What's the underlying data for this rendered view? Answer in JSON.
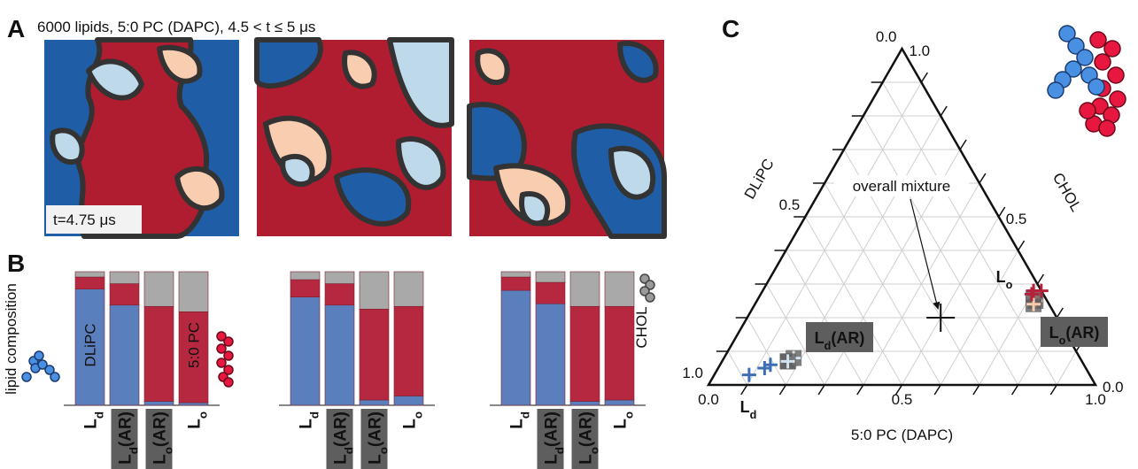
{
  "panels": {
    "letters": [
      "A",
      "B",
      "C"
    ],
    "snapshot_title": "6000 lipids, 5:0 PC (DAPC), 4.5 < t ≤ 5 μs",
    "time_label": "t=4.75 μs"
  },
  "chart_data": [
    {
      "type": "bar",
      "stacked": true,
      "ylabel": "lipid composition",
      "ylim": [
        0,
        1
      ],
      "categories": [
        "Ld",
        "Ld(AR)",
        "Lo(AR)",
        "Lo",
        "Ld",
        "Ld(AR)",
        "Lo(AR)",
        "Lo",
        "Ld",
        "Ld(AR)",
        "Lo(AR)",
        "Lo"
      ],
      "category_colors": [
        "#3e6db3",
        "#cfe3f1",
        "#f8cbad",
        "#b5203a",
        "#3e6db3",
        "#cfe3f1",
        "#f8cbad",
        "#b5203a",
        "#3e6db3",
        "#cfe3f1",
        "#f8cbad",
        "#b5203a"
      ],
      "series": [
        {
          "name": "DLiPC",
          "color": "#5b7fbd",
          "values": [
            0.87,
            0.75,
            0.03,
            0.02,
            0.81,
            0.75,
            0.04,
            0.07,
            0.86,
            0.76,
            0.03,
            0.04
          ]
        },
        {
          "name": "5:0 PC",
          "color": "#b5283f",
          "values": [
            0.09,
            0.16,
            0.71,
            0.68,
            0.13,
            0.16,
            0.68,
            0.67,
            0.1,
            0.16,
            0.71,
            0.7
          ]
        },
        {
          "name": "CHOL",
          "color": "#a9a9a9",
          "values": [
            0.04,
            0.09,
            0.26,
            0.3,
            0.06,
            0.09,
            0.28,
            0.26,
            0.04,
            0.08,
            0.26,
            0.26
          ]
        }
      ]
    },
    {
      "type": "ternary",
      "grid": true,
      "axes": [
        {
          "label": "5:0 PC (DAPC)",
          "ticks": [
            {
              "value": 0,
              "label": "0.0"
            },
            0.5,
            {
              "value": 1,
              "label": "1.0"
            }
          ]
        },
        {
          "label": "DLiPC",
          "ticks": [
            {
              "value": 0,
              "label": "0.0"
            },
            0.5,
            {
              "value": 1,
              "label": "1.0"
            }
          ]
        },
        {
          "label": "CHOL",
          "ticks": [
            {
              "value": 0,
              "label": "0.0"
            },
            0.5,
            {
              "value": 1,
              "label": "1.0"
            }
          ]
        }
      ],
      "minor_ticks": [
        0.1,
        0.2,
        0.3,
        0.4,
        0.5,
        0.6,
        0.7,
        0.8,
        0.9
      ],
      "series": [
        {
          "name": "Ld",
          "color": "#3e6db3",
          "boxed": false,
          "pc": [
            0.09,
            0.13,
            0.12
          ],
          "chol": [
            0.03,
            0.06,
            0.05
          ]
        },
        {
          "name": "Ld(AR)",
          "color": "#cfe3f1",
          "boxed": true,
          "pc": [
            0.17,
            0.18,
            0.17
          ],
          "chol": [
            0.07,
            0.08,
            0.07
          ]
        },
        {
          "name": "Lo(AR)",
          "color": "#f8cbad",
          "boxed": true,
          "pc": [
            0.72,
            0.71,
            0.72
          ],
          "chol": [
            0.25,
            0.26,
            0.24
          ]
        },
        {
          "name": "Lo",
          "color": "#b5203a",
          "boxed": false,
          "pc": [
            0.7,
            0.7,
            0.72
          ],
          "chol": [
            0.28,
            0.27,
            0.28
          ]
        }
      ],
      "annotation": {
        "text": "overall mixture",
        "pc": 0.5,
        "chol": 0.2
      }
    }
  ]
}
